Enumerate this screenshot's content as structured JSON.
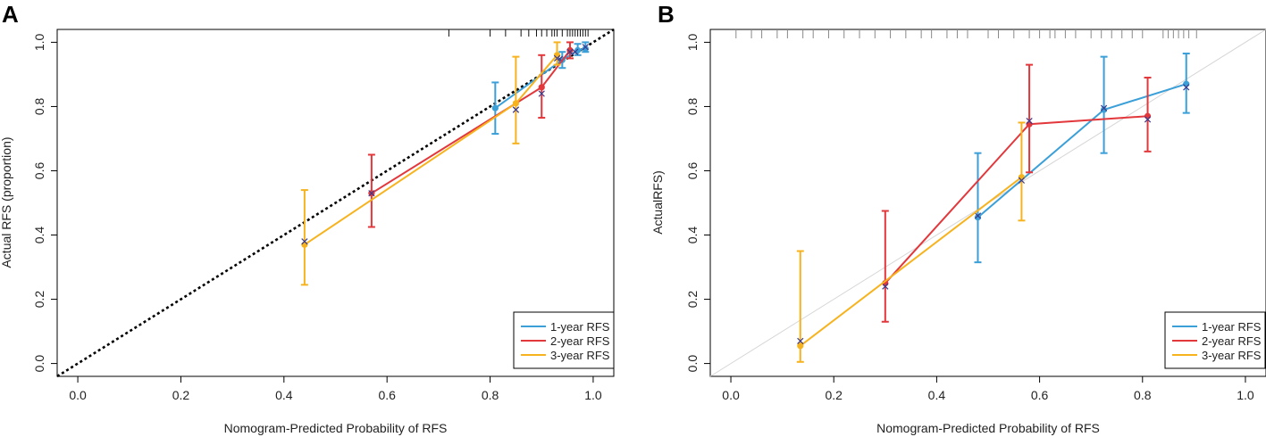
{
  "chart_data": [
    {
      "panel": "A",
      "type": "line",
      "xlabel": "Nomogram-Predicted Probability of RFS",
      "ylabel": "Actual RFS (proportion)",
      "xlim": [
        -0.04,
        1.04
      ],
      "ylim": [
        -0.04,
        1.04
      ],
      "x_ticks": [
        "0.0",
        "0.2",
        "0.4",
        "0.6",
        "0.8",
        "1.0"
      ],
      "y_ticks": [
        "0.0",
        "0.2",
        "0.4",
        "0.6",
        "0.8",
        "1.0"
      ],
      "reference_line": {
        "style": "dashed-black",
        "from": [
          -0.04,
          -0.04
        ],
        "to": [
          1.04,
          1.04
        ]
      },
      "legend_position": "bottom-right",
      "rug": [
        0.72,
        0.8,
        0.83,
        0.86,
        0.875,
        0.89,
        0.9,
        0.91,
        0.92,
        0.925,
        0.93,
        0.94,
        0.95,
        0.955,
        0.96,
        0.965,
        0.97,
        0.975,
        0.98,
        0.985,
        0.99
      ],
      "series": [
        {
          "name": "1-year RFS",
          "color": "#3B9FD8",
          "x": [
            0.81,
            0.94,
            0.97,
            0.985
          ],
          "y": [
            0.795,
            0.945,
            0.975,
            0.98
          ],
          "err_low": [
            0.715,
            0.92,
            0.96,
            0.97
          ],
          "err_high": [
            0.875,
            0.97,
            0.995,
            1.0
          ],
          "x_mark": [
            0.85,
            0.935,
            0.965,
            0.985
          ],
          "y_mark": [
            0.79,
            0.948,
            0.97,
            0.985
          ]
        },
        {
          "name": "2-year RFS",
          "color": "#E2373B",
          "x": [
            0.57,
            0.9,
            0.955
          ],
          "y": [
            0.53,
            0.86,
            0.975
          ],
          "err_low": [
            0.425,
            0.765,
            0.95
          ],
          "err_high": [
            0.65,
            0.96,
            1.0
          ],
          "x_mark": [
            0.57,
            0.9,
            0.955
          ],
          "y_mark": [
            0.53,
            0.84,
            0.97
          ]
        },
        {
          "name": "3-year RFS",
          "color": "#F7B31E",
          "x": [
            0.44,
            0.85,
            0.93
          ],
          "y": [
            0.37,
            0.81,
            0.96
          ],
          "err_low": [
            0.245,
            0.685,
            0.93
          ],
          "err_high": [
            0.54,
            0.955,
            1.0
          ],
          "x_mark": [
            0.44,
            0.85,
            0.93
          ],
          "y_mark": [
            0.38,
            0.79,
            0.95
          ]
        }
      ]
    },
    {
      "panel": "B",
      "type": "line",
      "xlabel": "Nomogram-Predicted Probability of RFS",
      "ylabel": "ActualRFS)",
      "xlim": [
        -0.04,
        1.04
      ],
      "ylim": [
        -0.04,
        1.04
      ],
      "x_ticks": [
        "0.0",
        "0.2",
        "0.4",
        "0.6",
        "0.8",
        "1.0"
      ],
      "y_ticks": [
        "0.0",
        "0.2",
        "0.4",
        "0.6",
        "0.8",
        "1.0"
      ],
      "reference_line": {
        "style": "solid-lightgray",
        "from": [
          -0.04,
          -0.04
        ],
        "to": [
          1.04,
          1.04
        ]
      },
      "legend_position": "bottom-right",
      "rug": [
        0.01,
        0.04,
        0.06,
        0.09,
        0.11,
        0.14,
        0.16,
        0.19,
        0.22,
        0.25,
        0.28,
        0.31,
        0.34,
        0.37,
        0.39,
        0.42,
        0.44,
        0.46,
        0.5,
        0.52,
        0.55,
        0.58,
        0.6,
        0.62,
        0.63,
        0.65,
        0.67,
        0.7,
        0.72,
        0.74,
        0.76,
        0.78,
        0.8,
        0.84,
        0.85,
        0.86,
        0.87,
        0.88,
        0.89,
        0.905
      ],
      "series": [
        {
          "name": "1-year RFS",
          "color": "#3B9FD8",
          "x": [
            0.48,
            0.725,
            0.885
          ],
          "y": [
            0.455,
            0.79,
            0.87
          ],
          "err_low": [
            0.315,
            0.655,
            0.78
          ],
          "err_high": [
            0.655,
            0.955,
            0.965
          ],
          "x_mark": [
            0.48,
            0.725,
            0.885
          ],
          "y_mark": [
            0.46,
            0.795,
            0.86
          ]
        },
        {
          "name": "2-year RFS",
          "color": "#E2373B",
          "x": [
            0.3,
            0.58,
            0.81
          ],
          "y": [
            0.25,
            0.745,
            0.77
          ],
          "err_low": [
            0.13,
            0.595,
            0.66
          ],
          "err_high": [
            0.475,
            0.93,
            0.89
          ],
          "x_mark": [
            0.3,
            0.58,
            0.81
          ],
          "y_mark": [
            0.24,
            0.755,
            0.76
          ]
        },
        {
          "name": "3-year RFS",
          "color": "#F7B31E",
          "x": [
            0.135,
            0.565
          ],
          "y": [
            0.055,
            0.58
          ],
          "err_low": [
            0.005,
            0.445
          ],
          "err_high": [
            0.35,
            0.75
          ],
          "x_mark": [
            0.135,
            0.565
          ],
          "y_mark": [
            0.07,
            0.57
          ]
        }
      ]
    }
  ]
}
